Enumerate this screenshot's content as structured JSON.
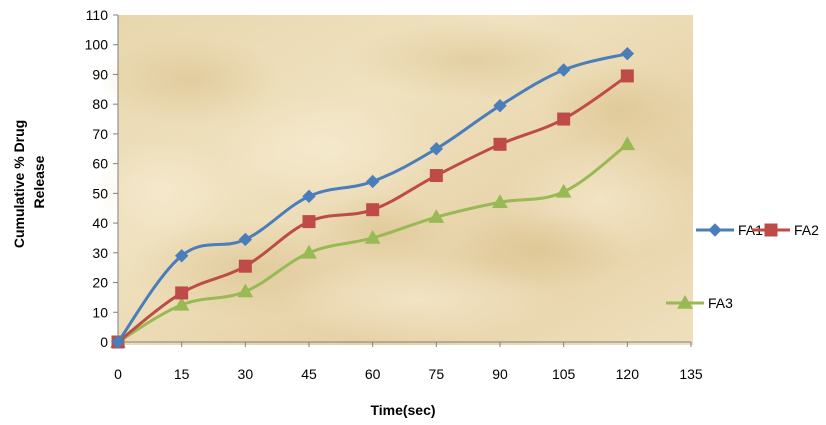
{
  "chart_data": {
    "type": "line",
    "xlabel": "Time(sec)",
    "ylabel": "Cumulative % Drug Release",
    "ylabel_lines": [
      "Cumulative % Drug",
      "Release"
    ],
    "xlim": [
      0,
      135
    ],
    "ylim": [
      0,
      110
    ],
    "x_ticks": [
      0,
      15,
      30,
      45,
      60,
      75,
      90,
      105,
      120,
      135
    ],
    "y_ticks": [
      0,
      10,
      20,
      30,
      40,
      50,
      60,
      70,
      80,
      90,
      100,
      110
    ],
    "x": [
      0,
      15,
      30,
      45,
      60,
      75,
      90,
      105,
      120
    ],
    "grid": false,
    "legend_position": "right",
    "series": [
      {
        "name": "FA1",
        "color": "#4a7ebb",
        "marker": "diamond",
        "values": [
          0,
          29,
          34.5,
          49,
          54,
          65,
          79.5,
          91.5,
          97
        ]
      },
      {
        "name": "FA2",
        "color": "#be4b48",
        "marker": "square",
        "values": [
          0,
          16.5,
          25.5,
          40.5,
          44.5,
          56,
          66.5,
          75,
          89.5
        ]
      },
      {
        "name": "FA3",
        "color": "#98b954",
        "marker": "triangle",
        "values": [
          0,
          12.5,
          17,
          30,
          35,
          42,
          47,
          50.5,
          66.5
        ]
      }
    ],
    "background": "parchment texture"
  }
}
